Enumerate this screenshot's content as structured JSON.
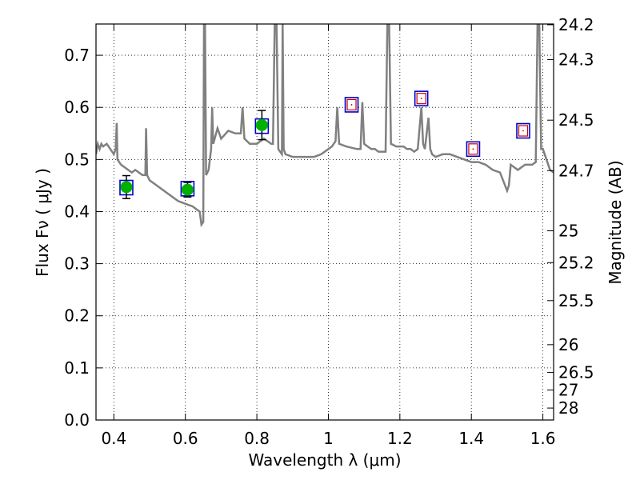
{
  "chart_data": {
    "type": "scatter",
    "title": "",
    "xlabel": "Wavelength  λ (μm)",
    "ylabel": "Flux  Fν  ( μJy )",
    "y2label": "Magnitude (AB)",
    "xlim": [
      0.35,
      1.63
    ],
    "ylim": [
      0.0,
      0.76
    ],
    "grid": true,
    "xticks": [
      "0.4",
      "0.6",
      "0.8",
      "1",
      "1.2",
      "1.4",
      "1.6"
    ],
    "yticks": [
      "0.0",
      "0.1",
      "0.2",
      "0.3",
      "0.4",
      "0.5",
      "0.6",
      "0.7"
    ],
    "y2ticks": [
      "24.2",
      "24.3",
      "24.5",
      "24.7",
      "25",
      "25.2",
      "25.5",
      "26",
      "26.5",
      "27",
      "28"
    ],
    "colors": {
      "spectrum": "#808080",
      "observed": "#00b000",
      "model_box": "#0000cc",
      "model_inner": "#cc0000",
      "errorbar": "#000000"
    },
    "spectrum": [
      [
        0.35,
        0.51
      ],
      [
        0.355,
        0.53
      ],
      [
        0.36,
        0.52
      ],
      [
        0.365,
        0.53
      ],
      [
        0.37,
        0.525
      ],
      [
        0.38,
        0.53
      ],
      [
        0.39,
        0.52
      ],
      [
        0.4,
        0.51
      ],
      [
        0.405,
        0.52
      ],
      [
        0.408,
        0.57
      ],
      [
        0.41,
        0.5
      ],
      [
        0.42,
        0.49
      ],
      [
        0.43,
        0.485
      ],
      [
        0.44,
        0.48
      ],
      [
        0.45,
        0.475
      ],
      [
        0.46,
        0.48
      ],
      [
        0.47,
        0.475
      ],
      [
        0.48,
        0.47
      ],
      [
        0.488,
        0.47
      ],
      [
        0.49,
        0.56
      ],
      [
        0.493,
        0.47
      ],
      [
        0.5,
        0.46
      ],
      [
        0.52,
        0.45
      ],
      [
        0.54,
        0.44
      ],
      [
        0.56,
        0.43
      ],
      [
        0.58,
        0.42
      ],
      [
        0.6,
        0.415
      ],
      [
        0.62,
        0.41
      ],
      [
        0.63,
        0.405
      ],
      [
        0.64,
        0.4
      ],
      [
        0.645,
        0.375
      ],
      [
        0.65,
        0.38
      ],
      [
        0.652,
        0.76
      ],
      [
        0.655,
        0.76
      ],
      [
        0.658,
        0.47
      ],
      [
        0.665,
        0.48
      ],
      [
        0.672,
        0.52
      ],
      [
        0.675,
        0.6
      ],
      [
        0.678,
        0.53
      ],
      [
        0.69,
        0.56
      ],
      [
        0.7,
        0.54
      ],
      [
        0.72,
        0.555
      ],
      [
        0.74,
        0.55
      ],
      [
        0.755,
        0.55
      ],
      [
        0.76,
        0.6
      ],
      [
        0.765,
        0.54
      ],
      [
        0.78,
        0.53
      ],
      [
        0.8,
        0.53
      ],
      [
        0.82,
        0.54
      ],
      [
        0.84,
        0.53
      ],
      [
        0.845,
        0.53
      ],
      [
        0.85,
        0.76
      ],
      [
        0.855,
        0.76
      ],
      [
        0.86,
        0.52
      ],
      [
        0.87,
        0.51
      ],
      [
        0.872,
        0.76
      ],
      [
        0.875,
        0.52
      ],
      [
        0.88,
        0.51
      ],
      [
        0.9,
        0.505
      ],
      [
        0.92,
        0.505
      ],
      [
        0.94,
        0.505
      ],
      [
        0.96,
        0.505
      ],
      [
        0.98,
        0.51
      ],
      [
        1.0,
        0.52
      ],
      [
        1.01,
        0.525
      ],
      [
        1.02,
        0.535
      ],
      [
        1.025,
        0.6
      ],
      [
        1.03,
        0.53
      ],
      [
        1.05,
        0.525
      ],
      [
        1.08,
        0.52
      ],
      [
        1.09,
        0.52
      ],
      [
        1.095,
        0.61
      ],
      [
        1.1,
        0.53
      ],
      [
        1.11,
        0.525
      ],
      [
        1.12,
        0.52
      ],
      [
        1.13,
        0.52
      ],
      [
        1.14,
        0.515
      ],
      [
        1.15,
        0.515
      ],
      [
        1.16,
        0.515
      ],
      [
        1.165,
        0.76
      ],
      [
        1.17,
        0.76
      ],
      [
        1.175,
        0.53
      ],
      [
        1.19,
        0.525
      ],
      [
        1.2,
        0.525
      ],
      [
        1.21,
        0.525
      ],
      [
        1.22,
        0.52
      ],
      [
        1.23,
        0.52
      ],
      [
        1.24,
        0.515
      ],
      [
        1.25,
        0.52
      ],
      [
        1.26,
        0.6
      ],
      [
        1.265,
        0.53
      ],
      [
        1.27,
        0.52
      ],
      [
        1.28,
        0.58
      ],
      [
        1.285,
        0.52
      ],
      [
        1.29,
        0.51
      ],
      [
        1.3,
        0.505
      ],
      [
        1.32,
        0.51
      ],
      [
        1.34,
        0.51
      ],
      [
        1.36,
        0.505
      ],
      [
        1.38,
        0.5
      ],
      [
        1.4,
        0.495
      ],
      [
        1.42,
        0.495
      ],
      [
        1.44,
        0.49
      ],
      [
        1.46,
        0.48
      ],
      [
        1.48,
        0.475
      ],
      [
        1.5,
        0.44
      ],
      [
        1.505,
        0.45
      ],
      [
        1.51,
        0.49
      ],
      [
        1.52,
        0.485
      ],
      [
        1.53,
        0.48
      ],
      [
        1.54,
        0.485
      ],
      [
        1.55,
        0.49
      ],
      [
        1.56,
        0.49
      ],
      [
        1.57,
        0.49
      ],
      [
        1.58,
        0.495
      ],
      [
        1.585,
        0.76
      ],
      [
        1.59,
        0.76
      ],
      [
        1.595,
        0.52
      ],
      [
        1.6,
        0.52
      ],
      [
        1.61,
        0.5
      ],
      [
        1.62,
        0.48
      ],
      [
        1.63,
        0.475
      ]
    ],
    "observed": [
      {
        "x": 0.435,
        "y": 0.447,
        "err": 0.022
      },
      {
        "x": 0.606,
        "y": 0.442,
        "err": 0.014
      },
      {
        "x": 0.814,
        "y": 0.566,
        "err": 0.028
      }
    ],
    "model": [
      {
        "x": 0.435,
        "y": 0.446,
        "inner": false
      },
      {
        "x": 0.606,
        "y": 0.444,
        "inner": false
      },
      {
        "x": 0.814,
        "y": 0.564,
        "inner": false
      },
      {
        "x": 1.065,
        "y": 0.605,
        "inner": true
      },
      {
        "x": 1.26,
        "y": 0.617,
        "inner": true
      },
      {
        "x": 1.405,
        "y": 0.52,
        "inner": true
      },
      {
        "x": 1.545,
        "y": 0.555,
        "inner": true
      }
    ]
  }
}
